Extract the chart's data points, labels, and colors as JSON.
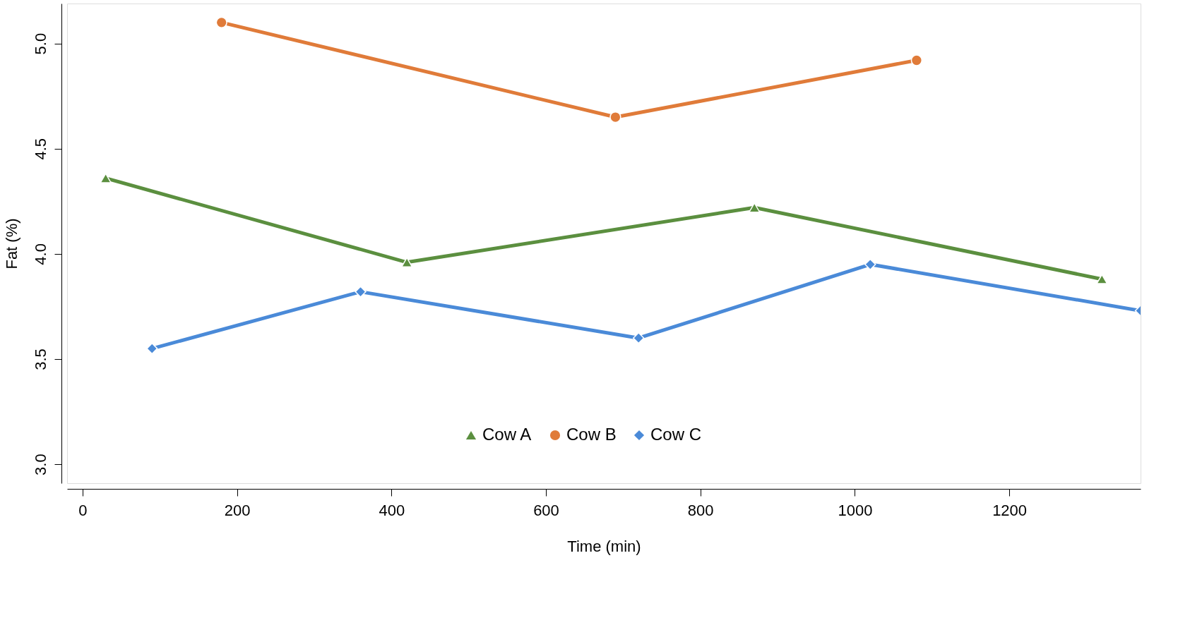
{
  "chart_data": {
    "type": "line",
    "xlabel": "Time (min)",
    "ylabel": "Fat (%)",
    "xlim": [
      -20,
      1370
    ],
    "xticks": [
      0,
      200,
      400,
      600,
      800,
      1000,
      1200
    ],
    "ylim": [
      2.91,
      5.19
    ],
    "yticks": [
      {
        "value": 3.0,
        "label": "3.0"
      },
      {
        "value": 3.5,
        "label": "3.5"
      },
      {
        "value": 4.0,
        "label": "4.0"
      },
      {
        "value": 4.5,
        "label": "4.5"
      },
      {
        "value": 5.0,
        "label": "5.0"
      }
    ],
    "grid": false,
    "legend": "bottom",
    "line_style": "solid",
    "series": [
      {
        "name": "Cow A",
        "color": "#5b8f3f",
        "marker": "triangle",
        "x": [
          30,
          420,
          870,
          1320
        ],
        "values": [
          4.36,
          3.96,
          4.22,
          3.88
        ]
      },
      {
        "name": "Cow B",
        "color": "#e07b39",
        "marker": "circle",
        "x": [
          180,
          690,
          1080
        ],
        "values": [
          5.1,
          4.65,
          4.92
        ]
      },
      {
        "name": "Cow C",
        "color": "#4a8ad8",
        "marker": "diamond",
        "x": [
          90,
          360,
          720,
          1020,
          1370
        ],
        "values": [
          3.55,
          3.82,
          3.6,
          3.95,
          3.73
        ]
      }
    ]
  }
}
